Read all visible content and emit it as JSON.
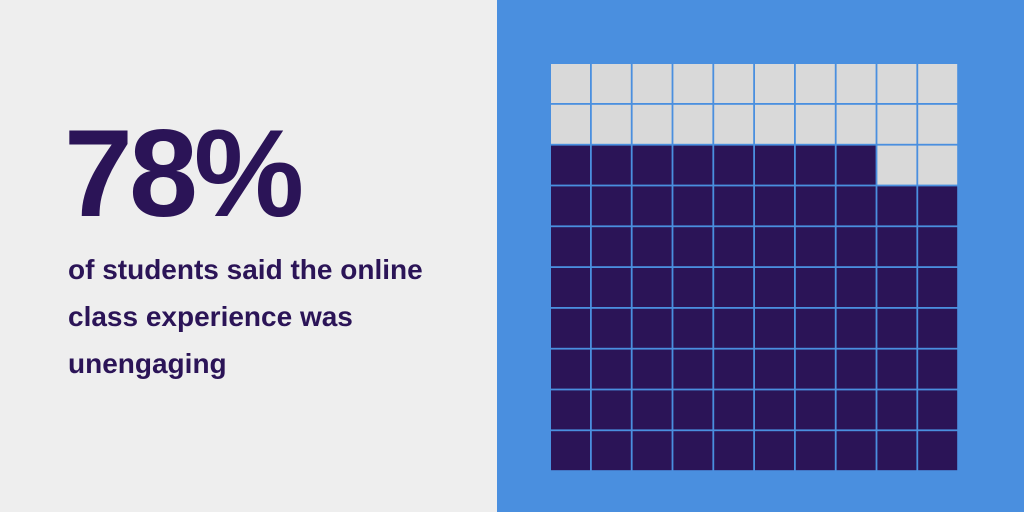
{
  "chart_data": {
    "type": "waffle",
    "values": [
      78
    ],
    "value_labels": [
      "78%"
    ],
    "description": "of students said the online class experience was unengaging",
    "color": "#2b1457",
    "empty_color": "#d9d9d9"
  }
}
